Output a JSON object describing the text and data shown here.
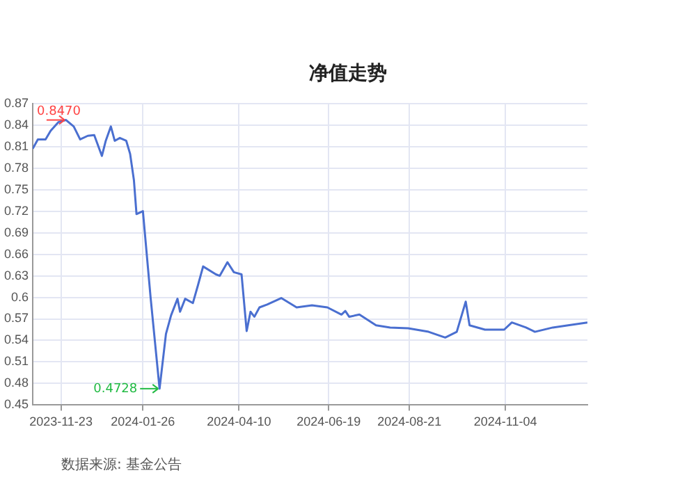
{
  "chart_data": {
    "type": "line",
    "title": "净值走势",
    "x": [
      "2023-11-01",
      "2023-11-05",
      "2023-11-11",
      "2023-11-15",
      "2023-11-21",
      "2023-11-27",
      "2023-12-03",
      "2023-12-08",
      "2023-12-14",
      "2023-12-19",
      "2023-12-25",
      "2023-12-28",
      "2024-01-01",
      "2024-01-04",
      "2024-01-08",
      "2024-01-13",
      "2024-01-16",
      "2024-01-19",
      "2024-01-21",
      "2024-01-26",
      "2024-01-30",
      "2024-02-01",
      "2024-02-08",
      "2024-02-13",
      "2024-02-17",
      "2024-02-22",
      "2024-02-24",
      "2024-02-28",
      "2024-03-05",
      "2024-03-09",
      "2024-03-13",
      "2024-03-23",
      "2024-03-26",
      "2024-04-01",
      "2024-04-06",
      "2024-04-12",
      "2024-04-16",
      "2024-04-19",
      "2024-04-22",
      "2024-04-26",
      "2024-05-02",
      "2024-05-13",
      "2024-05-25",
      "2024-06-06",
      "2024-06-18",
      "2024-06-29",
      "2024-07-02",
      "2024-07-05",
      "2024-07-13",
      "2024-07-26",
      "2024-08-06",
      "2024-08-20",
      "2024-09-05",
      "2024-09-18",
      "2024-09-27",
      "2024-10-04",
      "2024-10-07",
      "2024-10-19",
      "2024-11-03",
      "2024-11-09",
      "2024-11-20",
      "2024-11-27",
      "2024-12-11",
      "2024-12-23",
      "2025-01-07"
    ],
    "series": [
      {
        "color": "#4a6fd0",
        "values": [
          0.807,
          0.82,
          0.82,
          0.832,
          0.844,
          0.847,
          0.838,
          0.82,
          0.825,
          0.826,
          0.797,
          0.818,
          0.838,
          0.818,
          0.822,
          0.818,
          0.8,
          0.763,
          0.716,
          0.72,
          0.64,
          0.6,
          0.4728,
          0.549,
          0.575,
          0.598,
          0.58,
          0.598,
          0.592,
          0.617,
          0.643,
          0.632,
          0.63,
          0.649,
          0.635,
          0.632,
          0.553,
          0.58,
          0.573,
          0.586,
          0.59,
          0.599,
          0.586,
          0.589,
          0.586,
          0.576,
          0.581,
          0.573,
          0.576,
          0.561,
          0.558,
          0.557,
          0.552,
          0.544,
          0.552,
          0.594,
          0.561,
          0.555,
          0.555,
          0.565,
          0.558,
          0.552,
          0.558,
          0.561,
          0.565
        ]
      }
    ],
    "xlim": [
      "2023-11-01",
      "2025-01-07"
    ],
    "xticks": [
      "2023-11-23",
      "2024-01-26",
      "2024-04-10",
      "2024-06-19",
      "2024-08-21",
      "2024-11-04"
    ],
    "ylim": [
      0.45,
      0.87
    ],
    "yticks": [
      0.45,
      0.48,
      0.51,
      0.54,
      0.57,
      0.6,
      0.63,
      0.66,
      0.69,
      0.72,
      0.75,
      0.78,
      0.81,
      0.84,
      0.87
    ],
    "grid": true,
    "legend": false,
    "marker": "none",
    "line_style": "solid",
    "annotations": [
      {
        "text": "0.8470",
        "x": "2023-11-27",
        "y": 0.847
      },
      {
        "text": "0.4728",
        "x": "2024-02-08",
        "y": 0.4728
      },
      "数据来源: 基金公告"
    ]
  }
}
